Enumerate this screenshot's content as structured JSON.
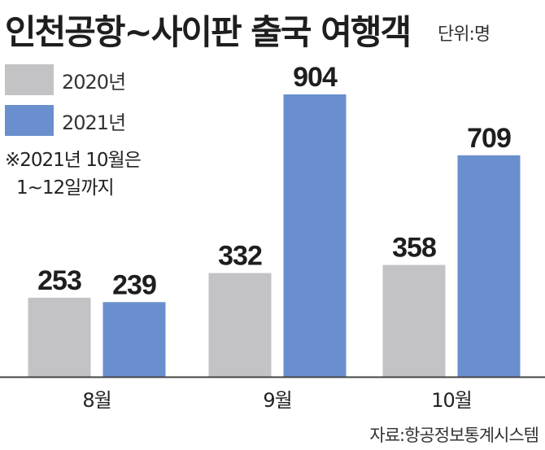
{
  "title": "인천공항~사이판 출국 여행객",
  "unit": "단위:명",
  "note": [
    "※2021년 10월은",
    "1~12일까지"
  ],
  "source": "자료:항공정보통계시스템",
  "colors": {
    "series_2020": "#c3c3c6",
    "series_2021": "#6a8fce"
  },
  "chart_data": {
    "type": "bar",
    "title": "인천공항~사이판 출국 여행객",
    "ylabel": "",
    "xlabel": "",
    "categories": [
      "8월",
      "9월",
      "10월"
    ],
    "series": [
      {
        "name": "2020년",
        "values": [
          253,
          332,
          358
        ]
      },
      {
        "name": "2021년",
        "values": [
          239,
          904,
          709
        ]
      }
    ],
    "ylim": [
      0,
      1000
    ],
    "grid": false,
    "legend": "top-left"
  }
}
